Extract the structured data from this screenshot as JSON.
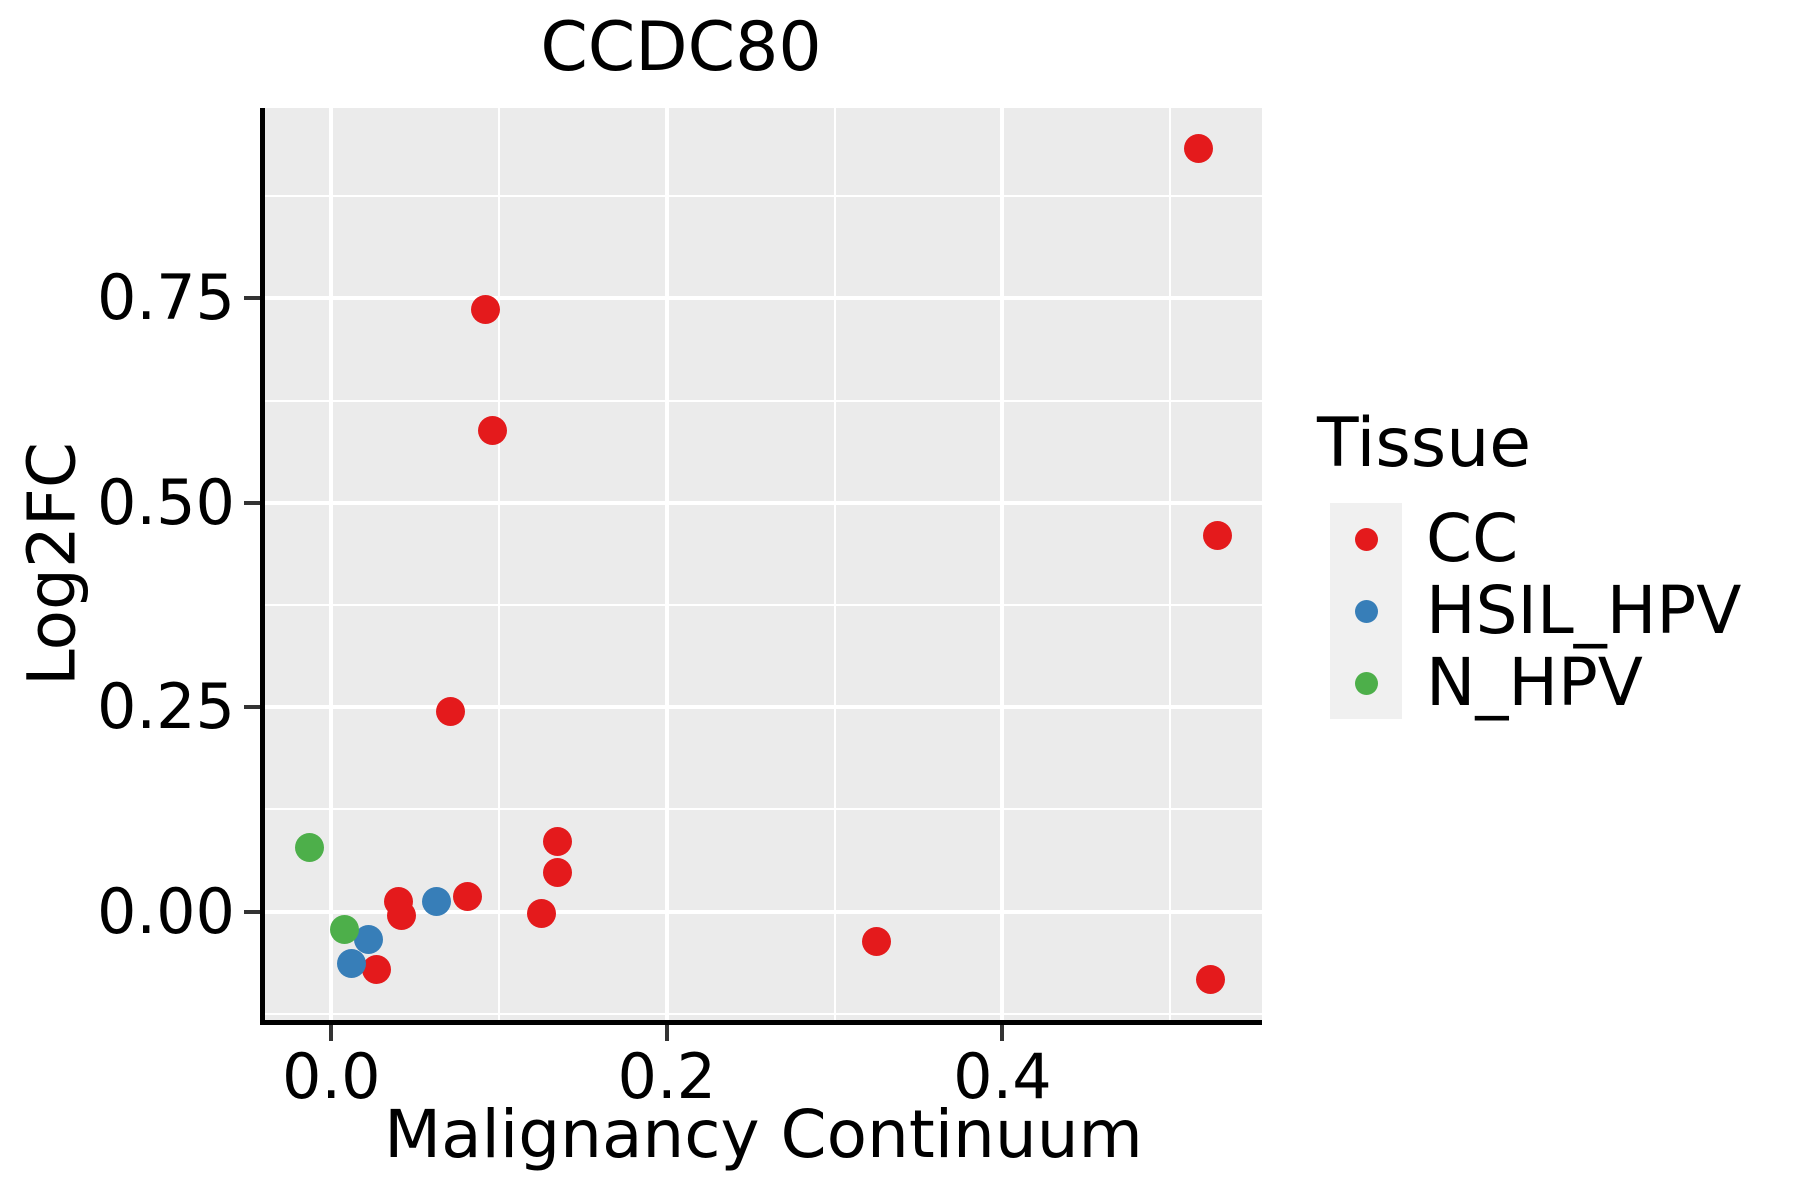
{
  "chart_data": {
    "type": "scatter",
    "title": "CCDC80",
    "xlabel": "Malignancy Continuum",
    "ylabel": "Log2FC",
    "legend_title": "Tissue",
    "xlim": [
      -0.0395,
      0.5547
    ],
    "ylim": [
      -0.1326,
      0.983
    ],
    "grid": true,
    "legend_position": "right",
    "x_major_ticks": {
      "values": [
        0.0,
        0.2,
        0.4
      ],
      "labels": [
        "0.0",
        "0.2",
        "0.4"
      ]
    },
    "y_major_ticks": {
      "values": [
        0.0,
        0.25,
        0.5,
        0.75
      ],
      "labels": [
        "0.00",
        "0.25",
        "0.50",
        "0.75"
      ]
    },
    "x_minor_ticks": [
      0.1,
      0.3,
      0.5
    ],
    "y_minor_ticks": [
      -0.125,
      0.125,
      0.375,
      0.625,
      0.875
    ],
    "series": [
      {
        "name": "CC",
        "color": "#E41A1C",
        "points": [
          [
            0.517,
            0.933
          ],
          [
            0.092,
            0.736
          ],
          [
            0.096,
            0.588
          ],
          [
            0.528,
            0.46
          ],
          [
            0.071,
            0.245
          ],
          [
            0.135,
            0.086
          ],
          [
            0.135,
            0.048
          ],
          [
            0.081,
            0.019
          ],
          [
            0.04,
            0.012
          ],
          [
            0.042,
            -0.005
          ],
          [
            0.125,
            -0.002
          ],
          [
            0.027,
            -0.071
          ],
          [
            0.325,
            -0.037
          ],
          [
            0.524,
            -0.083
          ]
        ]
      },
      {
        "name": "HSIL_HPV",
        "color": "#377EB8",
        "points": [
          [
            0.063,
            0.012
          ],
          [
            0.022,
            -0.034
          ],
          [
            0.012,
            -0.064
          ]
        ]
      },
      {
        "name": "N_HPV",
        "color": "#4DAF4A",
        "points": [
          [
            -0.013,
            0.078
          ],
          [
            0.008,
            -0.022
          ]
        ]
      }
    ],
    "colors": {
      "panel_background": "#EBEBEB",
      "gridline": "#FFFFFF",
      "axis_line": "#000000",
      "tick_mark": "#333333",
      "text": "#000000",
      "legend_key_background": "#F0F0F0"
    }
  }
}
